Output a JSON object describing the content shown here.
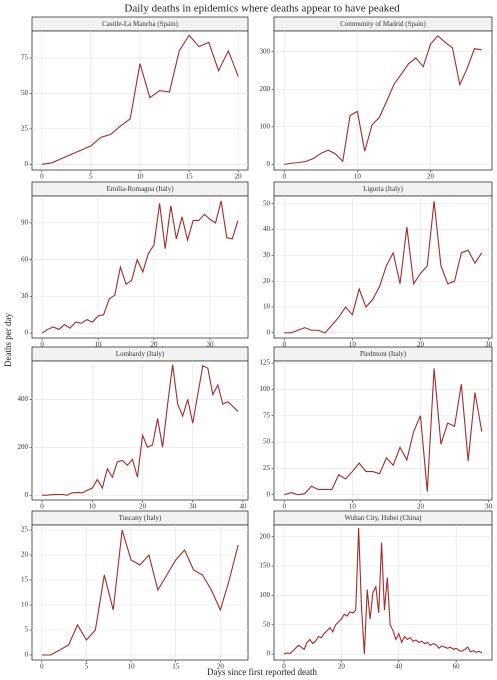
{
  "title": "Daily deaths in epidemics where deaths appear to have peaked",
  "x_label": "Days since first reported death",
  "y_label": "Deaths per day",
  "chart_data": [
    {
      "type": "line",
      "title": "Castile-La Mancha (Spain)",
      "color": "#a52a2a",
      "grid": true,
      "x": [
        0,
        1,
        2,
        3,
        4,
        5,
        6,
        7,
        8,
        9,
        10,
        11,
        12,
        13,
        14,
        15,
        16,
        17,
        18,
        19,
        20
      ],
      "values": [
        0,
        1,
        4,
        7,
        10,
        13,
        19,
        21,
        27,
        32,
        71,
        47,
        52,
        51,
        80,
        91,
        83,
        86,
        66,
        80,
        62
      ],
      "xlim": [
        -1,
        21
      ],
      "ylim": [
        -4,
        94
      ],
      "xticks": [
        0,
        5,
        10,
        15,
        20
      ],
      "yticks": [
        0,
        25,
        50,
        75
      ]
    },
    {
      "type": "line",
      "title": "Community of Madrid (Spain)",
      "color": "#a52a2a",
      "grid": true,
      "x": [
        0,
        1,
        2,
        3,
        4,
        5,
        6,
        7,
        8,
        9,
        10,
        11,
        12,
        13,
        14,
        15,
        16,
        17,
        18,
        19,
        20,
        21,
        22,
        23,
        24,
        25,
        26,
        27
      ],
      "values": [
        0,
        3,
        5,
        8,
        16,
        29,
        38,
        28,
        8,
        130,
        141,
        35,
        105,
        125,
        168,
        213,
        240,
        268,
        283,
        260,
        320,
        342,
        325,
        310,
        212,
        255,
        308,
        305
      ],
      "xlim": [
        -1.4,
        28.4
      ],
      "ylim": [
        -15,
        355
      ],
      "xticks": [
        0,
        10,
        20
      ],
      "yticks": [
        0,
        100,
        200,
        300
      ]
    },
    {
      "type": "line",
      "title": "Emilia-Romagna (Italy)",
      "color": "#a52a2a",
      "grid": true,
      "x": [
        0,
        1,
        2,
        3,
        4,
        5,
        6,
        7,
        8,
        9,
        10,
        11,
        12,
        13,
        14,
        15,
        16,
        17,
        18,
        19,
        20,
        21,
        22,
        23,
        24,
        25,
        26,
        27,
        28,
        29,
        30,
        31,
        32,
        33,
        34,
        35
      ],
      "values": [
        0,
        3,
        5,
        3,
        7,
        4,
        9,
        8,
        11,
        9,
        14,
        15,
        28,
        31,
        54,
        40,
        43,
        60,
        50,
        65,
        72,
        106,
        69,
        104,
        77,
        95,
        76,
        92,
        92,
        97,
        93,
        90,
        108,
        78,
        77,
        92
      ],
      "xlim": [
        -1.8,
        36.8
      ],
      "ylim": [
        -4,
        112
      ],
      "xticks": [
        0,
        10,
        20,
        30
      ],
      "yticks": [
        0,
        30,
        60,
        90
      ]
    },
    {
      "type": "line",
      "title": "Liguria (Italy)",
      "color": "#a52a2a",
      "grid": true,
      "x": [
        0,
        1,
        2,
        3,
        4,
        5,
        6,
        7,
        8,
        9,
        10,
        11,
        12,
        13,
        14,
        15,
        16,
        17,
        18,
        19,
        20,
        21,
        22,
        23,
        24,
        25,
        26,
        27,
        28,
        29
      ],
      "values": [
        0,
        0,
        1,
        2,
        1,
        1,
        0,
        3,
        6,
        10,
        7,
        17,
        10,
        13,
        18,
        26,
        31,
        19,
        41,
        19,
        23,
        26,
        51,
        26,
        19,
        20,
        31,
        32,
        27,
        31
      ],
      "xlim": [
        -1.5,
        30.5
      ],
      "ylim": [
        -2,
        53
      ],
      "xticks": [
        0,
        10,
        20,
        30
      ],
      "yticks": [
        0,
        10,
        20,
        30,
        40,
        50
      ]
    },
    {
      "type": "line",
      "title": "Lombardy (Italy)",
      "color": "#a52a2a",
      "grid": true,
      "x": [
        0,
        1,
        2,
        3,
        4,
        5,
        6,
        7,
        8,
        9,
        10,
        11,
        12,
        13,
        14,
        15,
        16,
        17,
        18,
        19,
        20,
        21,
        22,
        23,
        24,
        25,
        26,
        27,
        28,
        29,
        30,
        31,
        32,
        33,
        34,
        35,
        36,
        37,
        38,
        39
      ],
      "values": [
        0,
        0,
        2,
        3,
        3,
        0,
        10,
        11,
        10,
        20,
        30,
        65,
        30,
        110,
        75,
        140,
        145,
        125,
        150,
        75,
        250,
        200,
        210,
        320,
        200,
        380,
        545,
        380,
        330,
        400,
        300,
        420,
        540,
        530,
        420,
        460,
        380,
        390,
        370,
        350
      ],
      "xlim": [
        -2,
        41
      ],
      "ylim": [
        -20,
        560
      ],
      "xticks": [
        0,
        10,
        20,
        30,
        40
      ],
      "yticks": [
        0,
        200,
        400
      ]
    },
    {
      "type": "line",
      "title": "Piedmont (Italy)",
      "color": "#a52a2a",
      "grid": true,
      "x": [
        0,
        1,
        2,
        3,
        4,
        5,
        6,
        7,
        8,
        9,
        10,
        11,
        12,
        13,
        14,
        15,
        16,
        17,
        18,
        19,
        20,
        21,
        22,
        23,
        24,
        25,
        26,
        27,
        28,
        29
      ],
      "values": [
        0,
        2,
        0,
        1,
        8,
        5,
        5,
        5,
        19,
        15,
        22,
        30,
        22,
        22,
        20,
        35,
        28,
        45,
        33,
        60,
        75,
        3,
        120,
        48,
        68,
        65,
        105,
        32,
        97,
        60
      ],
      "xlim": [
        -1.5,
        30.5
      ],
      "ylim": [
        -5,
        127
      ],
      "xticks": [
        0,
        10,
        20,
        30
      ],
      "yticks": [
        0,
        25,
        50,
        75,
        100,
        125
      ]
    },
    {
      "type": "line",
      "title": "Tuscany (Italy)",
      "color": "#a52a2a",
      "grid": true,
      "x": [
        0,
        1,
        2,
        3,
        4,
        5,
        6,
        7,
        8,
        9,
        10,
        11,
        12,
        13,
        14,
        15,
        16,
        17,
        18,
        19,
        20,
        21,
        22
      ],
      "values": [
        0,
        0,
        1,
        2,
        6,
        3,
        5,
        16,
        9,
        25,
        19,
        18,
        20,
        13,
        16,
        19,
        21,
        17,
        16,
        13,
        9,
        15,
        22
      ],
      "xlim": [
        -1.1,
        23.1
      ],
      "ylim": [
        -1,
        26
      ],
      "xticks": [
        0,
        5,
        10,
        15,
        20
      ],
      "yticks": [
        0,
        5,
        10,
        15,
        20,
        25
      ]
    },
    {
      "type": "line",
      "title": "Wuhan City, Hubei (China)",
      "color": "#a52a2a",
      "grid": true,
      "x": [
        0,
        1,
        2,
        3,
        4,
        5,
        6,
        7,
        8,
        9,
        10,
        11,
        12,
        13,
        14,
        15,
        16,
        17,
        18,
        19,
        20,
        21,
        22,
        23,
        24,
        25,
        26,
        27,
        28,
        29,
        30,
        31,
        32,
        33,
        34,
        35,
        36,
        37,
        38,
        39,
        40,
        41,
        42,
        43,
        44,
        45,
        46,
        47,
        48,
        49,
        50,
        51,
        52,
        53,
        54,
        55,
        56,
        57,
        58,
        59,
        60,
        61,
        62,
        63,
        64,
        65,
        66,
        67,
        68,
        69
      ],
      "values": [
        0,
        2,
        1,
        5,
        10,
        15,
        12,
        8,
        20,
        25,
        18,
        22,
        30,
        28,
        35,
        40,
        45,
        38,
        50,
        55,
        60,
        68,
        65,
        72,
        70,
        75,
        215,
        80,
        0,
        110,
        60,
        105,
        115,
        70,
        190,
        75,
        130,
        50,
        40,
        25,
        35,
        20,
        30,
        25,
        28,
        22,
        24,
        20,
        22,
        18,
        20,
        15,
        18,
        16,
        10,
        14,
        12,
        10,
        12,
        8,
        10,
        6,
        5,
        8,
        12,
        4,
        6,
        3,
        5,
        2
      ],
      "xlim": [
        -3.5,
        72.5
      ],
      "ylim": [
        -10,
        220
      ],
      "xticks": [
        0,
        20,
        40,
        60
      ],
      "yticks": [
        0,
        50,
        100,
        150,
        200
      ]
    }
  ]
}
